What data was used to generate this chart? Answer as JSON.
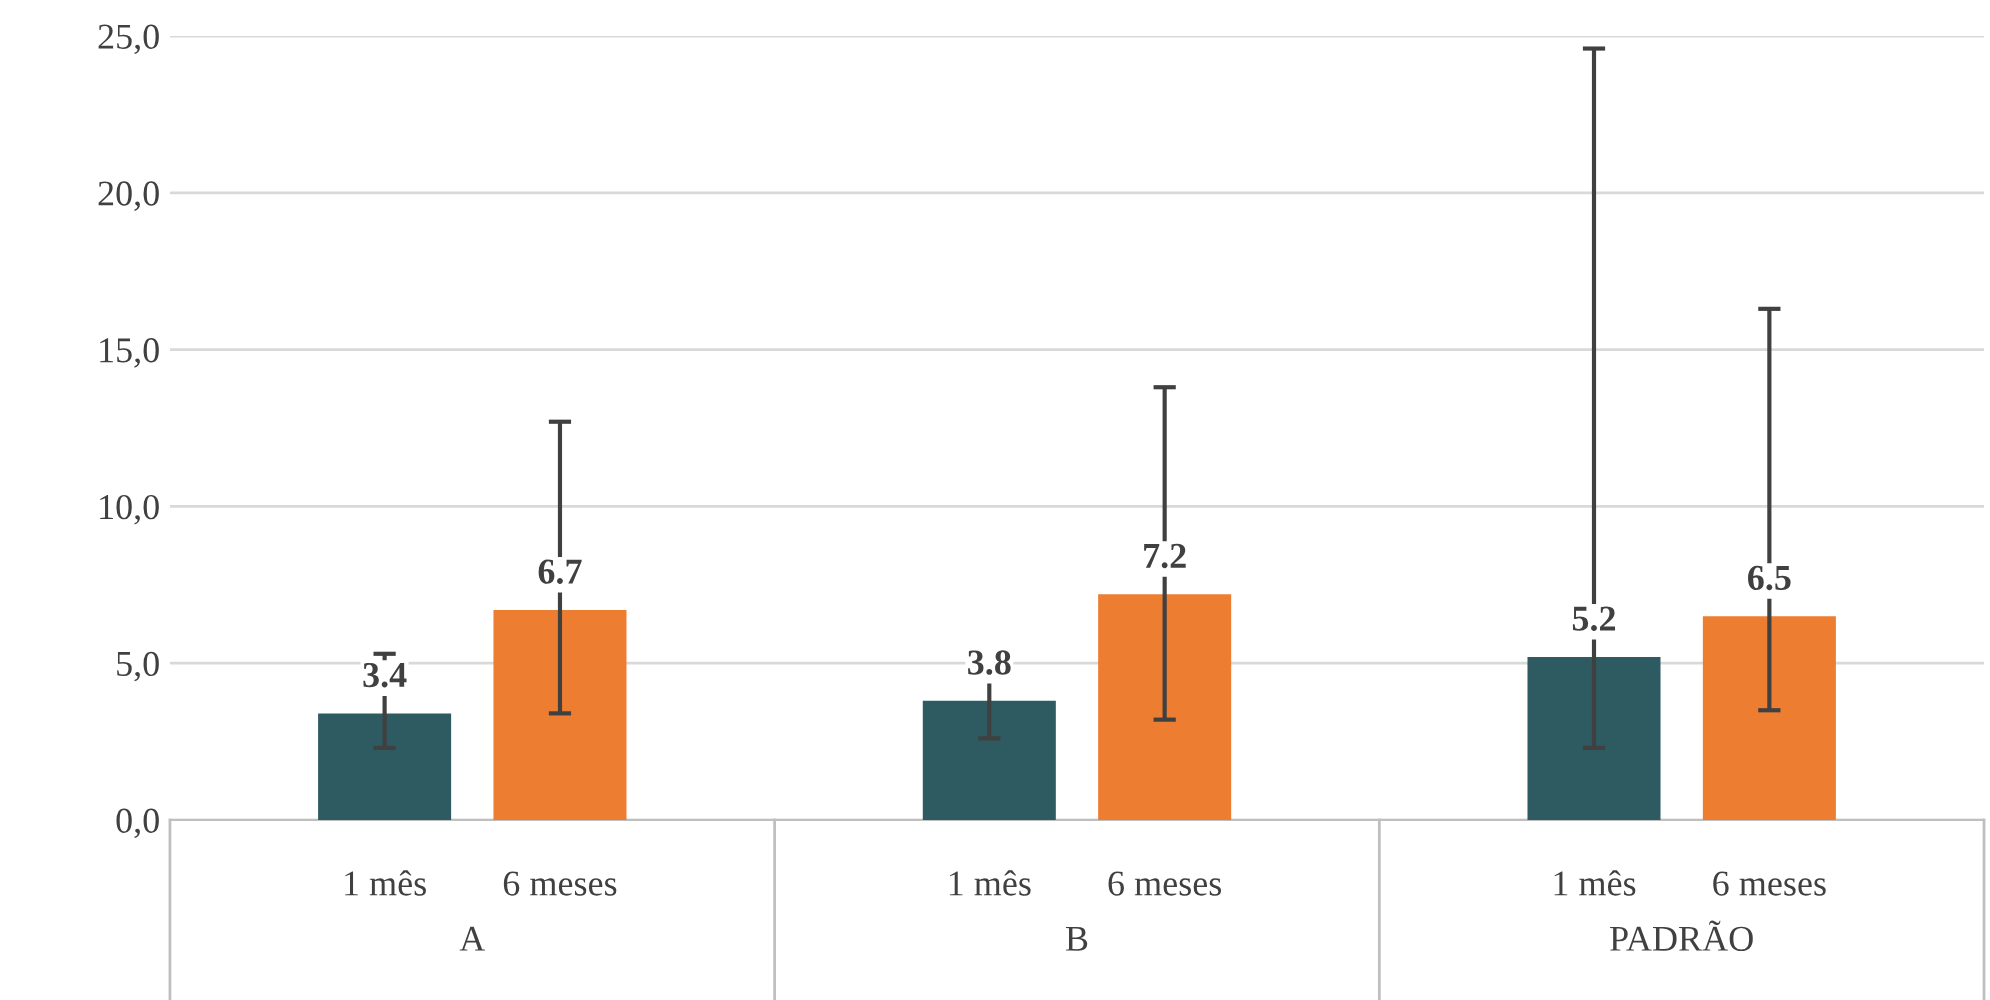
{
  "chart_data": {
    "type": "bar",
    "categories": [
      "A",
      "B",
      "PADRÃO"
    ],
    "series": [
      {
        "name": "1 mês",
        "color": "#2e5a61",
        "values": [
          3.4,
          3.8,
          5.2
        ],
        "errors": [
          [
            2.3,
            5.3
          ],
          [
            2.6,
            5.4
          ],
          [
            2.3,
            24.6
          ]
        ]
      },
      {
        "name": "6 meses",
        "color": "#ed7d31",
        "values": [
          6.7,
          7.2,
          6.5
        ],
        "errors": [
          [
            3.4,
            12.7
          ],
          [
            3.2,
            13.8
          ],
          [
            3.5,
            16.3
          ]
        ]
      }
    ],
    "ylim": [
      0,
      25
    ],
    "yticks": [
      {
        "value": 0,
        "label": "0,0"
      },
      {
        "value": 5,
        "label": "5,0"
      },
      {
        "value": 10,
        "label": "10,0"
      },
      {
        "value": 15,
        "label": "15,0"
      },
      {
        "value": 20,
        "label": "20,0"
      },
      {
        "value": 25,
        "label": "25,0"
      }
    ],
    "grid": "y",
    "data_labels": true
  }
}
